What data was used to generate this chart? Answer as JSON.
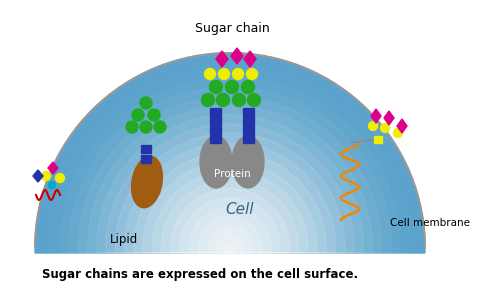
{
  "title": "Sugar chains are expressed on the cell surface.",
  "sugar_chain_label": "Sugar chain",
  "protein_label": "Protein",
  "cell_label": "Cell",
  "lipid_label": "Lipid",
  "cell_membrane_label": "Cell membrane",
  "bg_color": "#ffffff",
  "protein_color": "#888888",
  "lipid_body_color": "#a05c10",
  "blue_block_color": "#2233aa",
  "green_circle_color": "#22aa22",
  "yellow_circle_color": "#eeee00",
  "magenta_diamond_color": "#dd0088",
  "orange_coil_color": "#ee8800",
  "red_squiggle_color": "#cc0000",
  "cyan_dot_color": "#00aacc",
  "cell_edge_color": "#999999",
  "cell_base_color": "#5ba3cc",
  "cell_inner_color": "#d0e8f5"
}
